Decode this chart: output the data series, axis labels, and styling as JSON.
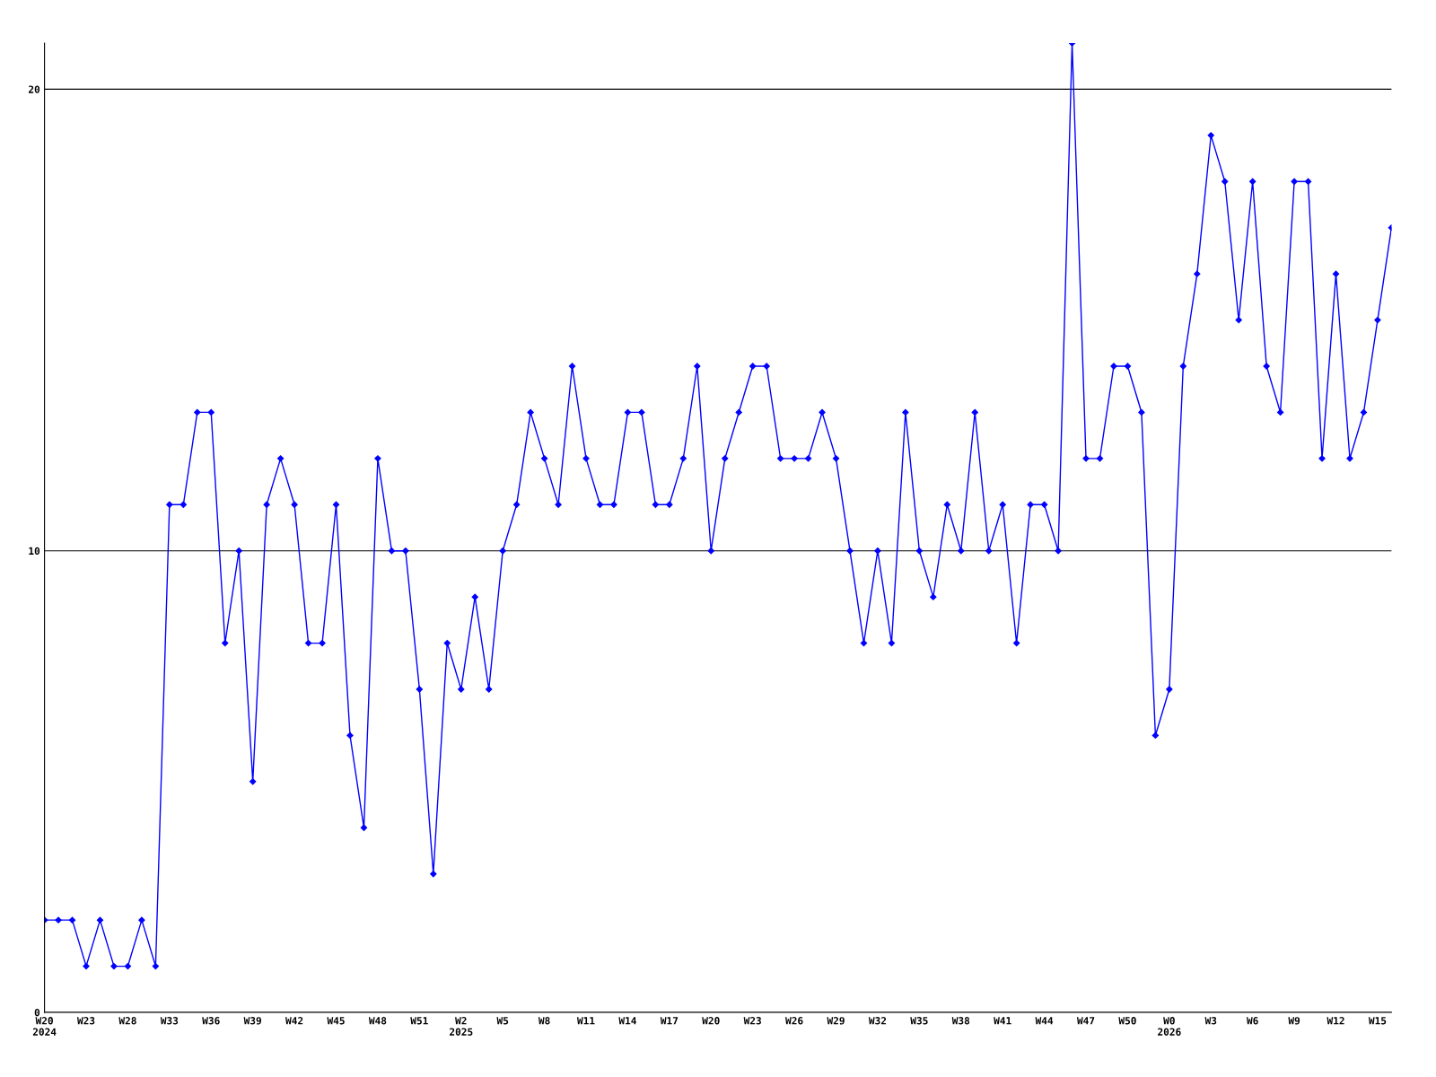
{
  "chart_data": {
    "type": "line",
    "categories": [
      "W20\n2024",
      null,
      null,
      "W23",
      null,
      null,
      "W28",
      null,
      null,
      "W33",
      null,
      null,
      "W36",
      null,
      null,
      "W39",
      null,
      null,
      "W42",
      null,
      null,
      "W45",
      null,
      null,
      "W48",
      null,
      null,
      "W51",
      null,
      null,
      "W2\n2025",
      null,
      null,
      "W5",
      null,
      null,
      "W8",
      null,
      null,
      "W11",
      null,
      null,
      "W14",
      null,
      null,
      "W17",
      null,
      null,
      "W20",
      null,
      null,
      "W23",
      null,
      null,
      "W26",
      null,
      null,
      "W29",
      null,
      null,
      "W32",
      null,
      null,
      "W35",
      null,
      null,
      "W38",
      null,
      null,
      "W41",
      null,
      null,
      "W44",
      null,
      null,
      "W47",
      null,
      null,
      "W50",
      null,
      null,
      "W0\n2026",
      null,
      null,
      "W3",
      null,
      null,
      "W6",
      null,
      null,
      "W9",
      null,
      null,
      "W12",
      null,
      null,
      "W15",
      null
    ],
    "series": [
      {
        "color": "#0000ff",
        "values": [
          2,
          2,
          2,
          1,
          2,
          1,
          1,
          2,
          1,
          11,
          11,
          13,
          13,
          8,
          10,
          5,
          11,
          12,
          11,
          8,
          8,
          11,
          6,
          4,
          12,
          10,
          10,
          7,
          3,
          8,
          7,
          9,
          7,
          10,
          11,
          13,
          12,
          11,
          14,
          12,
          11,
          11,
          13,
          13,
          11,
          11,
          12,
          14,
          10,
          12,
          13,
          14,
          14,
          12,
          12,
          12,
          13,
          12,
          10,
          8,
          10,
          8,
          13,
          10,
          9,
          11,
          10,
          13,
          10,
          11,
          8,
          11,
          11,
          10,
          21,
          12,
          12,
          14,
          14,
          13,
          6,
          7,
          14,
          16,
          19,
          18,
          15,
          18,
          14,
          13,
          18,
          18,
          12,
          16,
          12,
          13,
          15,
          17
        ]
      }
    ],
    "ylim": [
      0,
      21
    ],
    "yticks": [
      0,
      10,
      20
    ],
    "grid": "y",
    "marker": "diamond",
    "line_style": "solid",
    "legend": false
  }
}
